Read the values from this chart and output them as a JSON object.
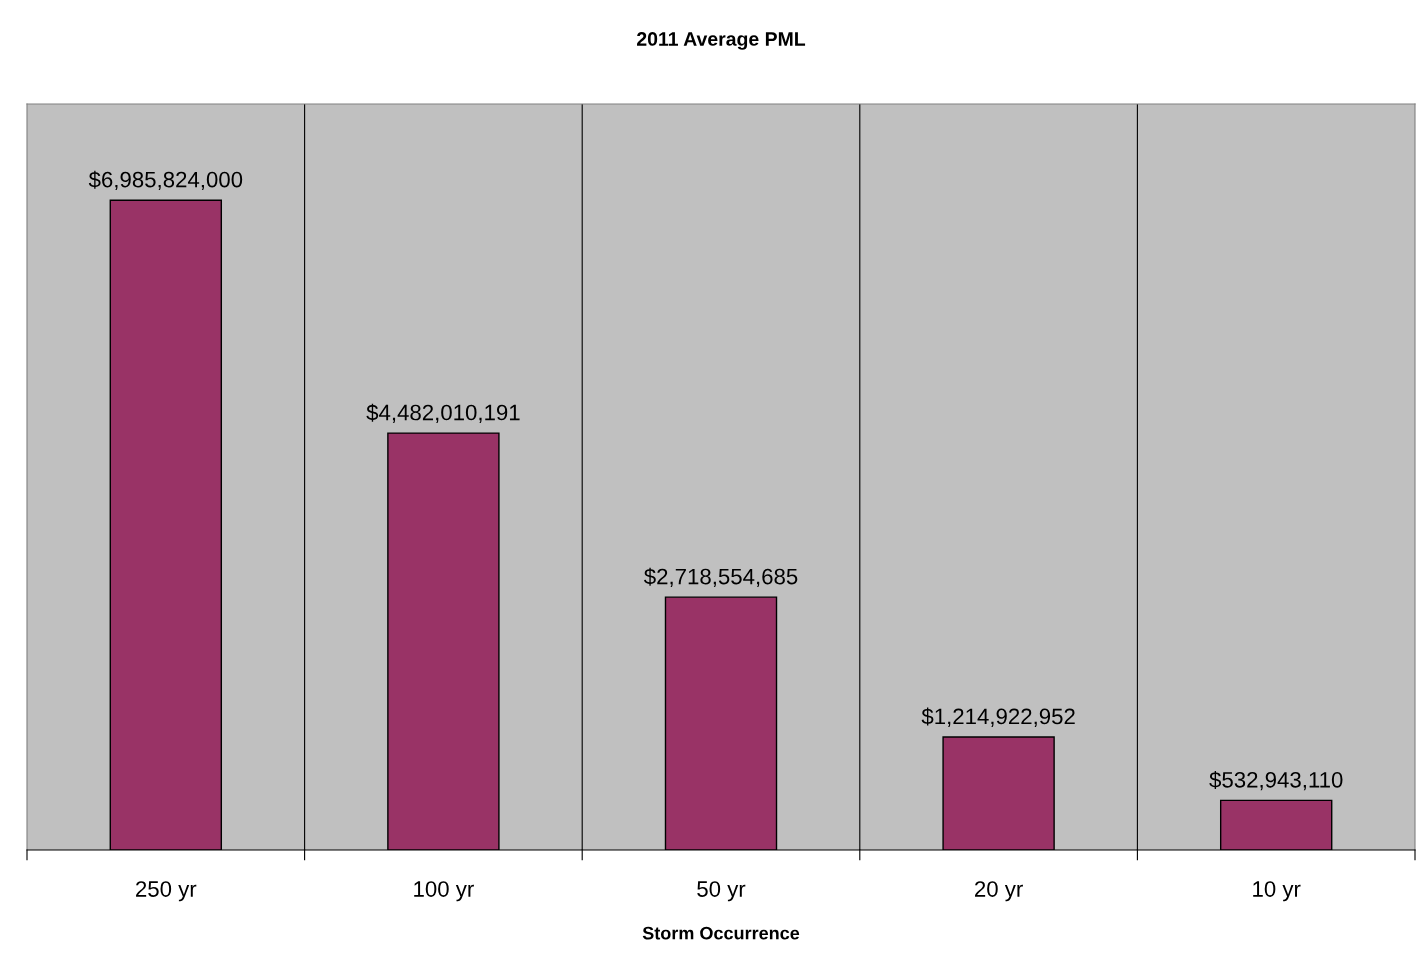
{
  "chart_data": {
    "type": "bar",
    "title": "2011 Average PML",
    "xlabel": "Storm Occurrence",
    "categories": [
      "250 yr",
      "100 yr",
      "50 yr",
      "20 yr",
      "10 yr"
    ],
    "values": [
      6985824000,
      4482010191,
      2718554685,
      1214922952,
      532943110
    ],
    "color": "#993366",
    "value_labels": [
      "$6,985,824,000",
      "$4,482,010,191",
      "$2,718,554,685",
      "$1,214,922,952",
      "$532,943,110"
    ],
    "ylim": [
      0,
      8020000000
    ],
    "tick_labels": "x",
    "grid": "x",
    "legend": false
  }
}
